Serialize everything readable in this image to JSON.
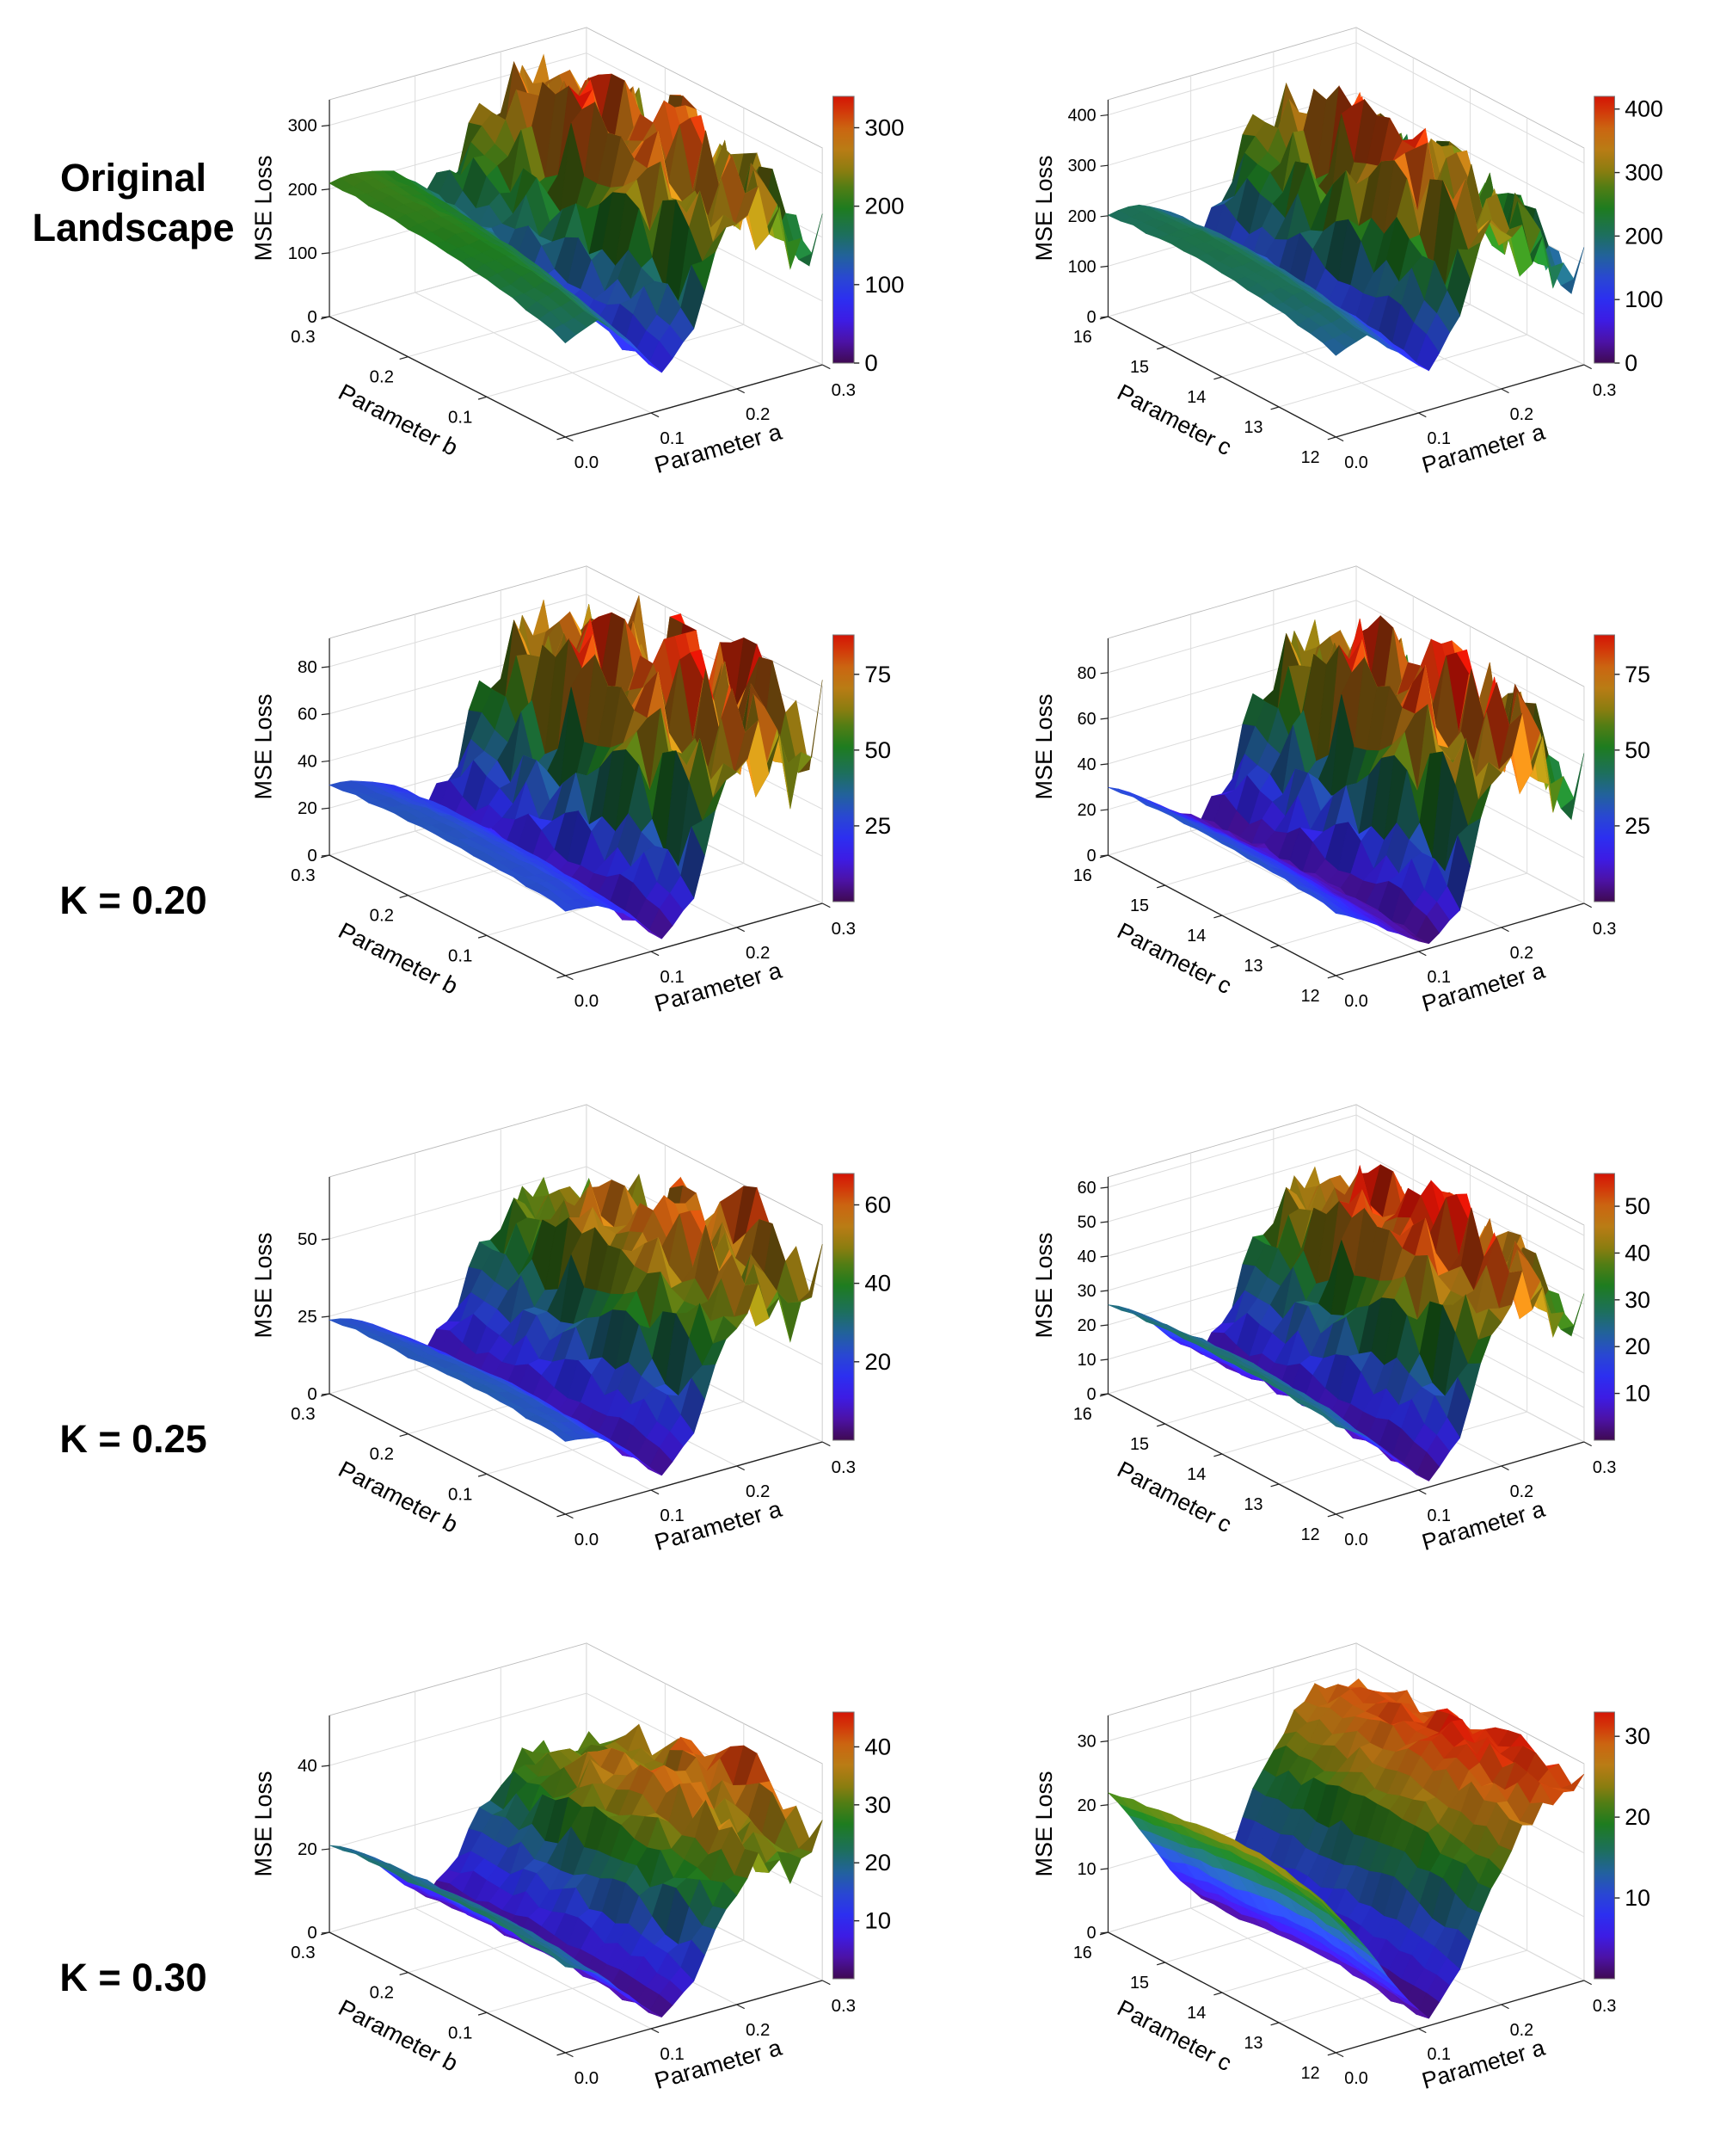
{
  "figure": {
    "background": "#ffffff",
    "row_labels": [
      "Original Landscape",
      "K = 0.20",
      "K = 0.25",
      "K = 0.30"
    ]
  },
  "colormap": [
    [
      0.0,
      "#3f0a52"
    ],
    [
      0.08,
      "#4c12a6"
    ],
    [
      0.16,
      "#3d1ce4"
    ],
    [
      0.24,
      "#2c2ff0"
    ],
    [
      0.32,
      "#2948d2"
    ],
    [
      0.4,
      "#22629c"
    ],
    [
      0.48,
      "#1d6f5e"
    ],
    [
      0.58,
      "#1e7c1f"
    ],
    [
      0.66,
      "#527d14"
    ],
    [
      0.72,
      "#8a7d10"
    ],
    [
      0.8,
      "#b97c15"
    ],
    [
      0.88,
      "#cb6511"
    ],
    [
      0.94,
      "#d23b0a"
    ],
    [
      1.0,
      "#d41405"
    ]
  ],
  "chart_data": [
    {
      "type": "surface",
      "row_label": "Original Landscape",
      "side": "left",
      "xlabel": "Parameter a",
      "xticks": [
        "0.0",
        "0.1",
        "0.2",
        "0.3"
      ],
      "ylabel": "Parameter b",
      "yticks": [
        "0.0",
        "0.1",
        "0.2",
        "0.3"
      ],
      "hide_first_ytick": true,
      "zlabel": "MSE Loss",
      "zticks": [
        0,
        100,
        200,
        300
      ],
      "zmax": 340,
      "colorbar_ticks": [
        0,
        100,
        200,
        300
      ],
      "colorbar_max": 340,
      "roughness": 0.16,
      "grid": [
        [
          150,
          170,
          120,
          62,
          140,
          230,
          262,
          210,
          190
        ],
        [
          170,
          185,
          140,
          72,
          152,
          250,
          292,
          240,
          222
        ],
        [
          185,
          196,
          160,
          92,
          170,
          272,
          312,
          262,
          232
        ],
        [
          196,
          202,
          176,
          112,
          190,
          292,
          330,
          282,
          252
        ],
        [
          202,
          206,
          186,
          132,
          202,
          300,
          320,
          272,
          242
        ],
        [
          206,
          210,
          190,
          150,
          210,
          282,
          302,
          252,
          232
        ],
        [
          210,
          214,
          200,
          160,
          202,
          262,
          282,
          242,
          222
        ]
      ]
    },
    {
      "type": "surface",
      "row_label": "Original Landscape",
      "side": "right",
      "xlabel": "Parameter a",
      "xticks": [
        "0.0",
        "0.1",
        "0.2",
        "0.3"
      ],
      "ylabel": "Parameter c",
      "yticks": [
        "12",
        "13",
        "14",
        "15",
        "16"
      ],
      "hide_first_ytick": false,
      "zlabel": "MSE Loss",
      "zticks": [
        0,
        100,
        200,
        300,
        400
      ],
      "zmax": 430,
      "colorbar_ticks": [
        0,
        100,
        200,
        300,
        400
      ],
      "colorbar_max": 420,
      "roughness": 0.16,
      "grid": [
        [
          165,
          185,
          130,
          82,
          205,
          305,
          262,
          222,
          182
        ],
        [
          185,
          198,
          150,
          92,
          242,
          342,
          302,
          252,
          202
        ],
        [
          198,
          208,
          165,
          102,
          282,
          382,
          332,
          272,
          222
        ],
        [
          208,
          214,
          176,
          112,
          302,
          402,
          342,
          282,
          232
        ],
        [
          212,
          216,
          182,
          122,
          282,
          372,
          322,
          262,
          222
        ],
        [
          206,
          212,
          176,
          116,
          252,
          342,
          302,
          252,
          212
        ],
        [
          202,
          206,
          172,
          112,
          232,
          312,
          282,
          242,
          202
        ]
      ]
    },
    {
      "type": "surface",
      "row_label": "K = 0.20",
      "side": "left",
      "xlabel": "Parameter a",
      "xticks": [
        "0.0",
        "0.1",
        "0.2",
        "0.3"
      ],
      "ylabel": "Parameter b",
      "yticks": [
        "0.0",
        "0.1",
        "0.2",
        "0.3"
      ],
      "hide_first_ytick": true,
      "zlabel": "MSE Loss",
      "zticks": [
        0,
        20,
        40,
        60,
        80
      ],
      "zmax": 92,
      "colorbar_ticks": [
        25,
        50,
        75
      ],
      "colorbar_max": 88,
      "roughness": 0.2,
      "grid": [
        [
          28,
          26,
          18,
          5,
          25,
          55,
          70,
          60,
          75
        ],
        [
          30,
          28,
          20,
          6,
          30,
          62,
          78,
          68,
          82
        ],
        [
          31,
          29,
          22,
          8,
          35,
          68,
          84,
          74,
          86
        ],
        [
          32,
          30,
          23,
          10,
          38,
          72,
          88,
          78,
          80
        ],
        [
          32,
          30,
          24,
          12,
          36,
          70,
          82,
          72,
          76
        ],
        [
          31,
          29,
          23,
          11,
          33,
          64,
          76,
          66,
          70
        ],
        [
          30,
          28,
          22,
          10,
          30,
          58,
          70,
          60,
          64
        ]
      ]
    },
    {
      "type": "surface",
      "row_label": "K = 0.20",
      "side": "right",
      "xlabel": "Parameter a",
      "xticks": [
        "0.0",
        "0.1",
        "0.2",
        "0.3"
      ],
      "ylabel": "Parameter c",
      "yticks": [
        "12",
        "13",
        "14",
        "15",
        "16"
      ],
      "hide_first_ytick": false,
      "zlabel": "MSE Loss",
      "zticks": [
        0,
        20,
        40,
        60,
        80
      ],
      "zmax": 95,
      "colorbar_ticks": [
        25,
        50,
        75
      ],
      "colorbar_max": 88,
      "roughness": 0.2,
      "grid": [
        [
          28,
          20,
          10,
          3,
          20,
          55,
          75,
          60,
          50
        ],
        [
          30,
          22,
          12,
          4,
          28,
          65,
          85,
          70,
          58
        ],
        [
          31,
          24,
          13,
          5,
          32,
          72,
          90,
          76,
          62
        ],
        [
          32,
          25,
          14,
          6,
          34,
          74,
          88,
          74,
          60
        ],
        [
          32,
          24,
          14,
          6,
          32,
          70,
          82,
          68,
          56
        ],
        [
          31,
          23,
          13,
          5,
          28,
          62,
          74,
          60,
          50
        ],
        [
          30,
          22,
          12,
          5,
          25,
          55,
          66,
          54,
          46
        ]
      ]
    },
    {
      "type": "surface",
      "row_label": "K = 0.25",
      "side": "left",
      "xlabel": "Parameter a",
      "xticks": [
        "0.0",
        "0.1",
        "0.2",
        "0.3"
      ],
      "ylabel": "Parameter b",
      "yticks": [
        "0.0",
        "0.1",
        "0.2",
        "0.3"
      ],
      "hide_first_ytick": true,
      "zlabel": "MSE Loss",
      "zticks": [
        0,
        25,
        50
      ],
      "zmax": 70,
      "colorbar_ticks": [
        20,
        40,
        60
      ],
      "colorbar_max": 68,
      "roughness": 0.12,
      "grid": [
        [
          24,
          22,
          14,
          4,
          18,
          38,
          50,
          42,
          55
        ],
        [
          25,
          23,
          15,
          5,
          22,
          44,
          56,
          48,
          60
        ],
        [
          26,
          24,
          16,
          6,
          25,
          48,
          62,
          52,
          63
        ],
        [
          26,
          24,
          17,
          7,
          26,
          50,
          64,
          54,
          58
        ],
        [
          25,
          23,
          16,
          7,
          24,
          47,
          58,
          48,
          52
        ],
        [
          25,
          22,
          15,
          6,
          22,
          42,
          52,
          44,
          46
        ],
        [
          24,
          21,
          14,
          6,
          20,
          38,
          46,
          40,
          42
        ]
      ]
    },
    {
      "type": "surface",
      "row_label": "K = 0.25",
      "side": "right",
      "xlabel": "Parameter a",
      "xticks": [
        "0.0",
        "0.1",
        "0.2",
        "0.3"
      ],
      "ylabel": "Parameter c",
      "yticks": [
        "12",
        "13",
        "14",
        "15",
        "16"
      ],
      "hide_first_ytick": false,
      "zlabel": "MSE Loss",
      "zticks": [
        0,
        10,
        20,
        30,
        40,
        50,
        60
      ],
      "zmax": 63,
      "colorbar_ticks": [
        10,
        20,
        30,
        40,
        50
      ],
      "colorbar_max": 57,
      "roughness": 0.13,
      "grid": [
        [
          26,
          20,
          10,
          2,
          15,
          35,
          48,
          40,
          36
        ],
        [
          27,
          22,
          12,
          3,
          20,
          42,
          55,
          46,
          40
        ],
        [
          28,
          23,
          13,
          4,
          24,
          48,
          60,
          50,
          44
        ],
        [
          28,
          24,
          14,
          5,
          26,
          50,
          62,
          50,
          42
        ],
        [
          28,
          23,
          13,
          5,
          24,
          46,
          56,
          46,
          38
        ],
        [
          27,
          22,
          12,
          4,
          21,
          40,
          50,
          42,
          34
        ],
        [
          26,
          21,
          11,
          4,
          18,
          36,
          44,
          38,
          32
        ]
      ]
    },
    {
      "type": "surface",
      "row_label": "K = 0.30",
      "side": "left",
      "xlabel": "Parameter a",
      "xticks": [
        "0.0",
        "0.1",
        "0.2",
        "0.3"
      ],
      "ylabel": "Parameter b",
      "yticks": [
        "0.0",
        "0.1",
        "0.2",
        "0.3"
      ],
      "hide_first_ytick": true,
      "zlabel": "MSE Loss",
      "zticks": [
        0,
        20,
        40
      ],
      "zmax": 52,
      "colorbar_ticks": [
        10,
        20,
        30,
        40
      ],
      "colorbar_max": 46,
      "roughness": 0.07,
      "grid": [
        [
          21,
          17,
          9,
          2,
          10,
          22,
          32,
          28,
          35
        ],
        [
          22,
          18,
          10,
          2,
          12,
          26,
          36,
          32,
          40
        ],
        [
          23,
          19,
          11,
          3,
          14,
          28,
          40,
          35,
          44
        ],
        [
          23,
          19,
          11,
          3,
          15,
          30,
          42,
          36,
          42
        ],
        [
          22,
          18,
          10,
          3,
          14,
          28,
          38,
          33,
          38
        ],
        [
          22,
          18,
          10,
          3,
          12,
          25,
          34,
          30,
          34
        ],
        [
          21,
          17,
          9,
          2,
          11,
          22,
          30,
          27,
          30
        ]
      ]
    },
    {
      "type": "surface",
      "row_label": "K = 0.30",
      "side": "right",
      "xlabel": "Parameter a",
      "xticks": [
        "0.0",
        "0.1",
        "0.2",
        "0.3"
      ],
      "ylabel": "Parameter c",
      "yticks": [
        "12",
        "13",
        "14",
        "15",
        "16"
      ],
      "hide_first_ytick": false,
      "zlabel": "MSE Loss",
      "zticks": [
        0,
        10,
        20,
        30
      ],
      "zmax": 34,
      "colorbar_ticks": [
        10,
        20,
        30
      ],
      "colorbar_max": 33,
      "roughness": 0.035,
      "grid": [
        [
          22,
          15,
          7,
          1,
          8,
          18,
          26,
          30,
          31
        ],
        [
          24,
          17,
          8,
          1,
          9,
          20,
          28,
          31,
          32
        ],
        [
          25,
          18,
          9,
          2,
          10,
          22,
          29,
          32,
          32
        ],
        [
          25,
          18,
          9,
          2,
          10,
          22,
          30,
          32,
          31
        ],
        [
          24,
          17,
          8,
          2,
          9,
          21,
          28,
          31,
          30
        ],
        [
          23,
          16,
          8,
          1,
          9,
          20,
          27,
          30,
          29
        ],
        [
          22,
          15,
          7,
          1,
          8,
          19,
          26,
          29,
          28
        ]
      ]
    }
  ]
}
